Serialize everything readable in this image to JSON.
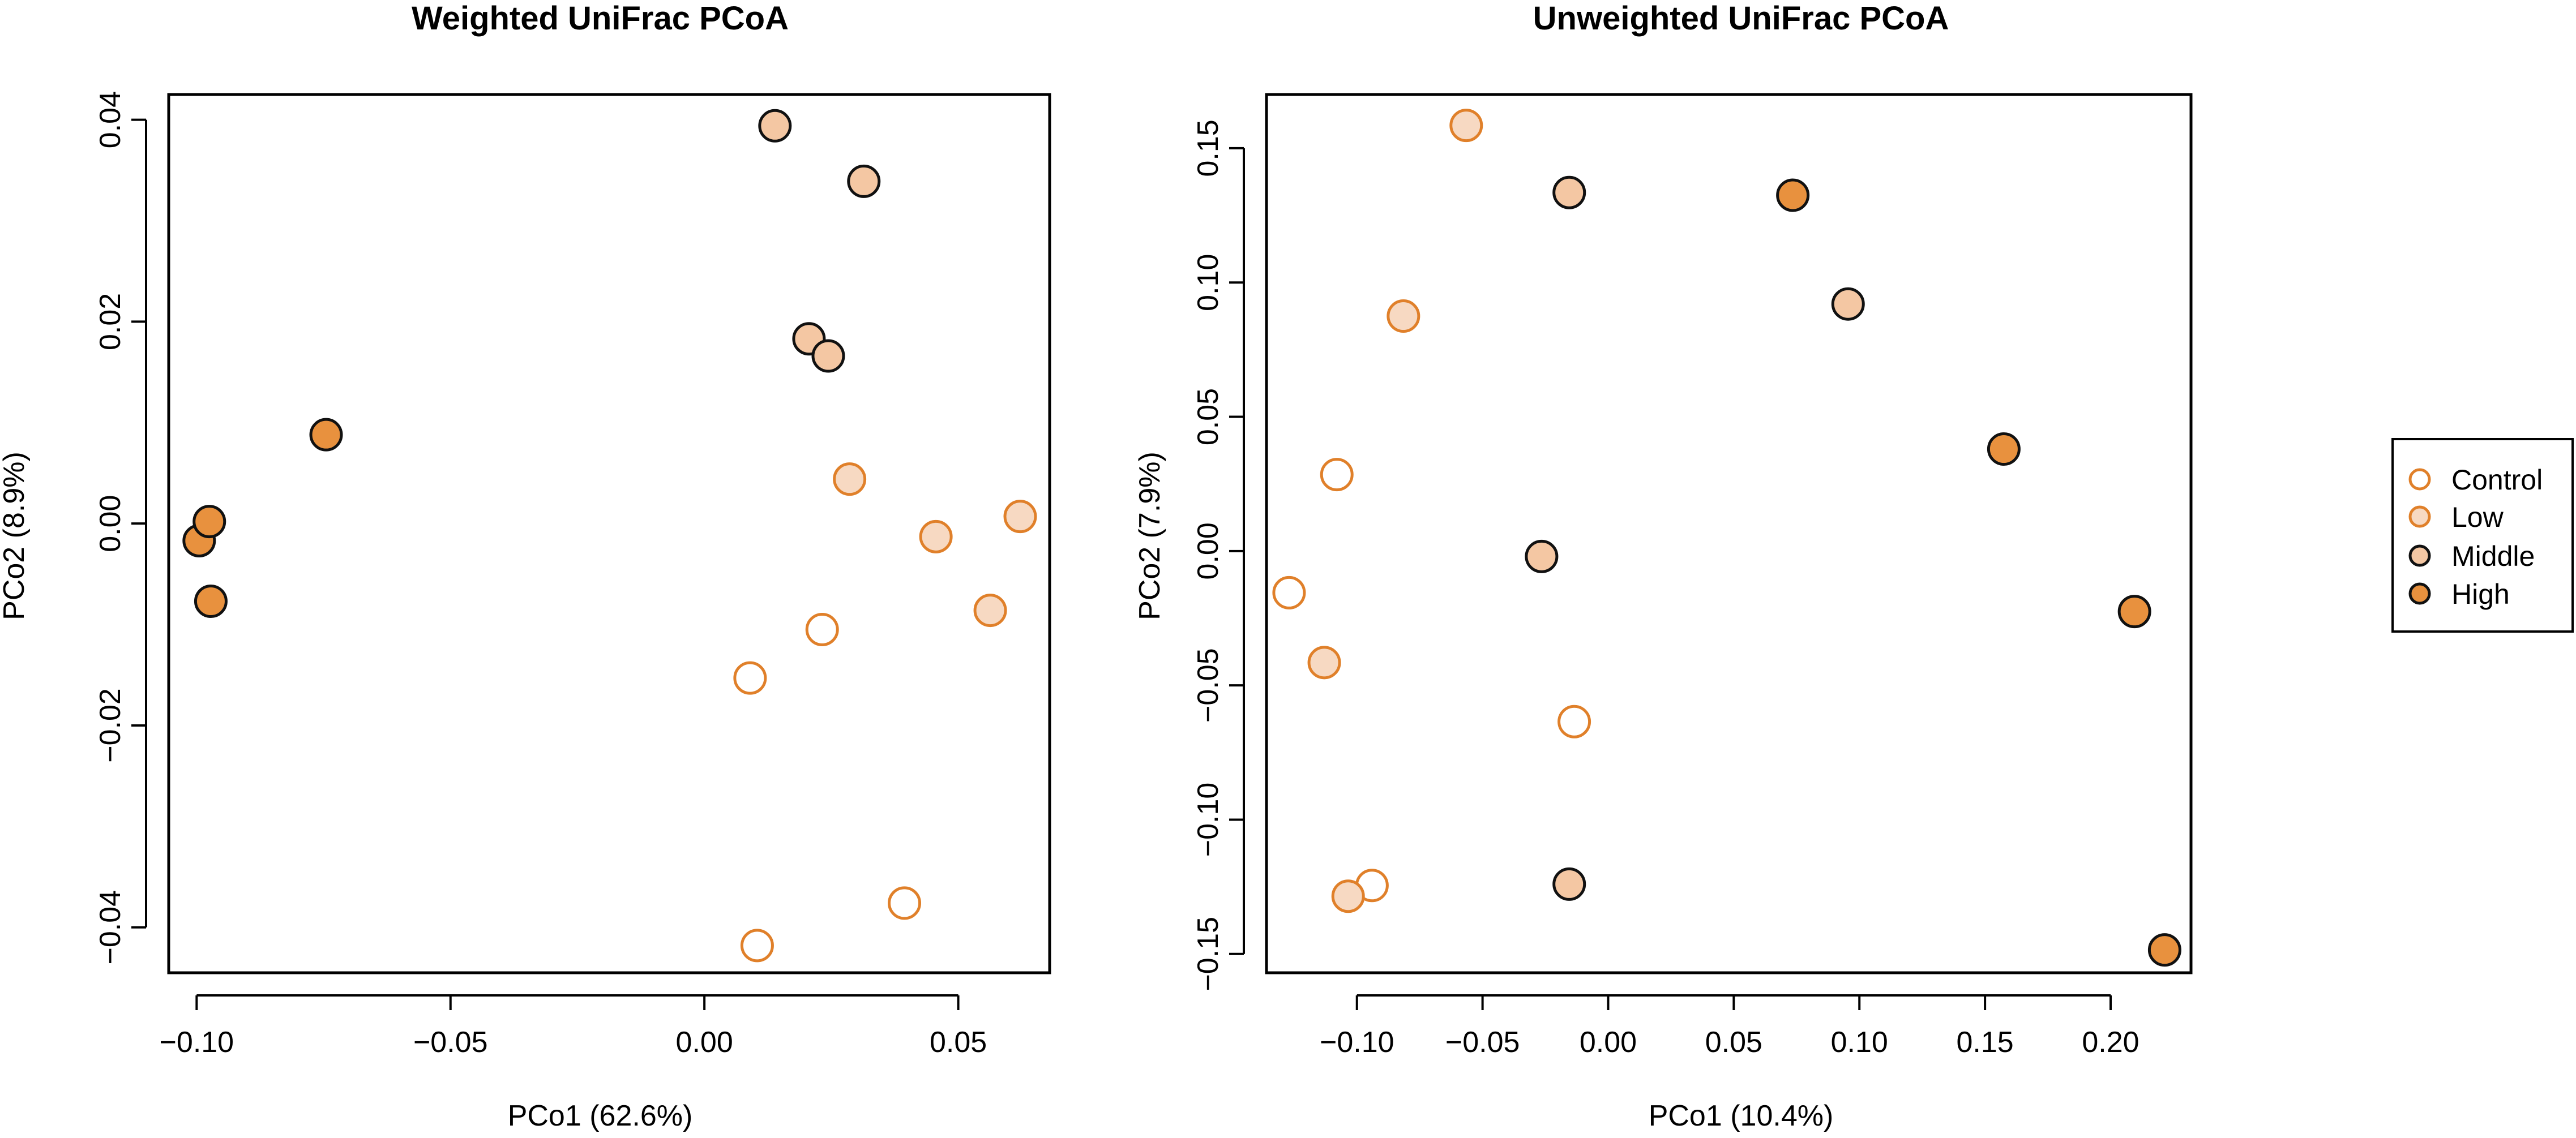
{
  "colors": {
    "control_stroke": "#e0802a",
    "control_fill": "#ffffff",
    "low_stroke": "#e0802a",
    "low_fill": "#f7d9c2",
    "middle_stroke": "#111111",
    "middle_fill": "#f4c7a3",
    "high_stroke": "#111111",
    "high_fill": "#e8913e",
    "axis": "#000000",
    "background": "#ffffff"
  },
  "legend": {
    "entries": [
      {
        "key": "control",
        "label": "Control"
      },
      {
        "key": "low",
        "label": "Low"
      },
      {
        "key": "middle",
        "label": "Middle"
      },
      {
        "key": "high",
        "label": "High"
      }
    ]
  },
  "chart_data": [
    {
      "type": "scatter",
      "title": "Weighted UniFrac PCoA",
      "xlabel": "PCo1 (62.6%)",
      "ylabel": "PCo2 (8.9%)",
      "xlim": [
        -0.1055,
        0.068
      ],
      "ylim": [
        -0.0445,
        0.0425
      ],
      "xticks": [
        -0.1,
        -0.05,
        0.0,
        0.05
      ],
      "xtick_labels": [
        "−0.10",
        "−0.05",
        "0.00",
        "0.05"
      ],
      "yticks": [
        -0.04,
        -0.02,
        0.0,
        0.02,
        0.04
      ],
      "ytick_labels": [
        "−0.04",
        "−0.02",
        "0.00",
        "0.02",
        "0.04"
      ],
      "series": [
        {
          "name": "Control",
          "key": "control",
          "points": [
            [
              0.009,
              -0.0153
            ],
            [
              0.0232,
              -0.0105
            ],
            [
              0.0104,
              -0.0418
            ],
            [
              0.0394,
              -0.0376
            ]
          ]
        },
        {
          "name": "Low",
          "key": "low",
          "points": [
            [
              0.0286,
              0.0044
            ],
            [
              0.0456,
              -0.0013
            ],
            [
              0.0622,
              0.0007
            ],
            [
              0.0563,
              -0.0086
            ]
          ]
        },
        {
          "name": "Middle",
          "key": "middle",
          "points": [
            [
              0.0139,
              0.0394
            ],
            [
              0.0314,
              0.0339
            ],
            [
              0.0206,
              0.0183
            ],
            [
              0.0244,
              0.0166
            ]
          ]
        },
        {
          "name": "High",
          "key": "high",
          "points": [
            [
              -0.0745,
              0.0088
            ],
            [
              -0.0995,
              -0.0017
            ],
            [
              -0.0975,
              0.0002
            ],
            [
              -0.0972,
              -0.0077
            ]
          ]
        }
      ]
    },
    {
      "type": "scatter",
      "title": "Unweighted UniFrac PCoA",
      "xlabel": "PCo1 (10.4%)",
      "ylabel": "PCo2 (7.9%)",
      "xlim": [
        -0.136,
        0.232
      ],
      "ylim": [
        -0.157,
        0.17
      ],
      "xticks": [
        -0.1,
        -0.05,
        0.0,
        0.05,
        0.1,
        0.15,
        0.2
      ],
      "xtick_labels": [
        "−0.10",
        "−0.05",
        "0.00",
        "0.05",
        "0.10",
        "0.15",
        "0.20"
      ],
      "yticks": [
        -0.15,
        -0.1,
        -0.05,
        0.0,
        0.05,
        0.1,
        0.15
      ],
      "ytick_labels": [
        "−0.15",
        "−0.10",
        "−0.05",
        "0.00",
        "0.05",
        "0.10",
        "0.15"
      ],
      "series": [
        {
          "name": "Control",
          "key": "control",
          "points": [
            [
              -0.108,
              0.0285
            ],
            [
              -0.127,
              -0.0155
            ],
            [
              -0.0135,
              -0.0635
            ],
            [
              -0.094,
              -0.1245
            ]
          ]
        },
        {
          "name": "Low",
          "key": "low",
          "points": [
            [
              -0.0565,
              0.1585
            ],
            [
              -0.0815,
              0.0875
            ],
            [
              -0.113,
              -0.0415
            ],
            [
              -0.1035,
              -0.1285
            ]
          ]
        },
        {
          "name": "Middle",
          "key": "middle",
          "points": [
            [
              -0.0155,
              0.1335
            ],
            [
              0.0955,
              0.092
            ],
            [
              -0.0265,
              -0.002
            ],
            [
              -0.0155,
              -0.124
            ]
          ]
        },
        {
          "name": "High",
          "key": "high",
          "points": [
            [
              0.0735,
              0.1325
            ],
            [
              0.1575,
              0.038
            ],
            [
              0.2095,
              -0.0225
            ],
            [
              0.2215,
              -0.1485
            ]
          ]
        }
      ]
    }
  ]
}
